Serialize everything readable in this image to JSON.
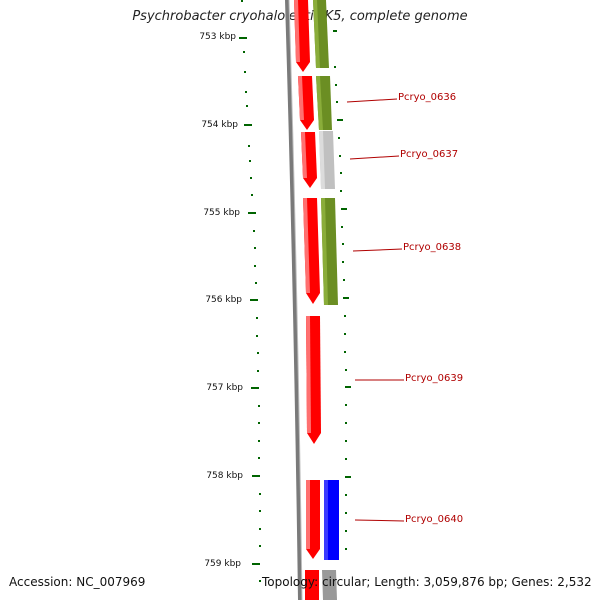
{
  "title": "Psychrobacter cryohalolentis K5, complete genome",
  "footer": {
    "accession": "Accession: NC_007969",
    "summary": "Topology: circular; Length: 3,059,876 bp; Genes: 2,532"
  },
  "ticks": [
    {
      "label": "753 kbp"
    },
    {
      "label": "754 kbp"
    },
    {
      "label": "755 kbp"
    },
    {
      "label": "756 kbp"
    },
    {
      "label": "757 kbp"
    },
    {
      "label": "758 kbp"
    },
    {
      "label": "759 kbp"
    }
  ],
  "genes": [
    {
      "label": "Pcryo_0636"
    },
    {
      "label": "Pcryo_0637"
    },
    {
      "label": "Pcryo_0638"
    },
    {
      "label": "Pcryo_0639"
    },
    {
      "label": "Pcryo_0640"
    }
  ],
  "colors": {
    "forward_cds": "#ff0000",
    "reverse_green": "#6b8e23",
    "reverse_gray": "#c0c0c0",
    "reverse_blue": "#0000ff",
    "backbone": "#808080",
    "tick": "#006400",
    "label": "#b00000"
  }
}
